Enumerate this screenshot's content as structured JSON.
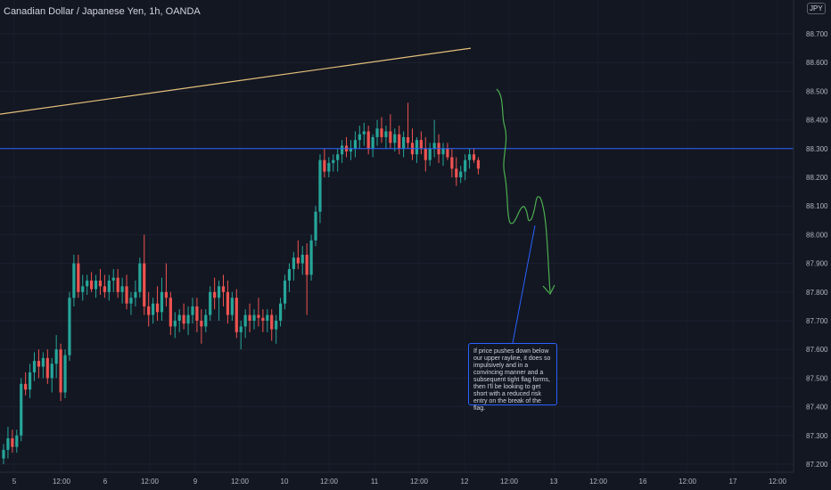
{
  "header": {
    "title": "Canadian Dollar / Japanese Yen, 1h, OANDA",
    "currency": "JPY"
  },
  "annotation": {
    "text": "If price pushes down below our upper rayline, it does so impulsively and in a convincing manner and a subsequent tight flag forms, then I'll be looking to get short with a reduced risk entry on the break of the flag."
  },
  "colors": {
    "background": "#131722",
    "bull": "#26a69a",
    "bear": "#ef5350",
    "horizontal_line": "#2962ff",
    "trend_line": "#e5c07b",
    "projection": "#4caf50",
    "annotation_border": "#2962ff"
  },
  "chart_data": {
    "type": "candlestick",
    "symbol": "CADJPY",
    "interval": "1h",
    "source": "OANDA",
    "ylim": [
      87.19,
      88.89
    ],
    "y_ticks": [
      "88.700",
      "88.600",
      "88.500",
      "88.400",
      "88.300",
      "88.200",
      "88.100",
      "88.000",
      "87.900",
      "87.800",
      "87.700",
      "87.600",
      "87.500",
      "87.400",
      "87.300",
      "87.200"
    ],
    "x_ticks": [
      "5",
      "12:00",
      "6",
      "12:00",
      "9",
      "12:00",
      "10",
      "12:00",
      "11",
      "12:00",
      "12",
      "12:00",
      "13",
      "12:00",
      "16",
      "12:00",
      "17",
      "12:00"
    ],
    "current_price_label": "88.3xx",
    "horizontal_line_level": 88.3,
    "trend_line": {
      "start_price": 88.42,
      "end_price": 88.65
    },
    "candles": [
      {
        "o": 87.22,
        "h": 87.27,
        "l": 87.2,
        "c": 87.25
      },
      {
        "o": 87.25,
        "h": 87.33,
        "l": 87.22,
        "c": 87.29
      },
      {
        "o": 87.29,
        "h": 87.32,
        "l": 87.24,
        "c": 87.26
      },
      {
        "o": 87.26,
        "h": 87.32,
        "l": 87.24,
        "c": 87.3
      },
      {
        "o": 87.3,
        "h": 87.5,
        "l": 87.28,
        "c": 87.48
      },
      {
        "o": 87.48,
        "h": 87.52,
        "l": 87.44,
        "c": 87.46
      },
      {
        "o": 87.46,
        "h": 87.55,
        "l": 87.43,
        "c": 87.52
      },
      {
        "o": 87.52,
        "h": 87.59,
        "l": 87.49,
        "c": 87.56
      },
      {
        "o": 87.56,
        "h": 87.6,
        "l": 87.5,
        "c": 87.54
      },
      {
        "o": 87.54,
        "h": 87.59,
        "l": 87.5,
        "c": 87.57
      },
      {
        "o": 87.57,
        "h": 87.6,
        "l": 87.48,
        "c": 87.5
      },
      {
        "o": 87.5,
        "h": 87.57,
        "l": 87.45,
        "c": 87.55
      },
      {
        "o": 87.55,
        "h": 87.65,
        "l": 87.5,
        "c": 87.6
      },
      {
        "o": 87.6,
        "h": 87.62,
        "l": 87.42,
        "c": 87.45
      },
      {
        "o": 87.45,
        "h": 87.6,
        "l": 87.43,
        "c": 87.58
      },
      {
        "o": 87.58,
        "h": 87.8,
        "l": 87.56,
        "c": 87.78
      },
      {
        "o": 87.78,
        "h": 87.93,
        "l": 87.75,
        "c": 87.9
      },
      {
        "o": 87.9,
        "h": 87.93,
        "l": 87.78,
        "c": 87.8
      },
      {
        "o": 87.8,
        "h": 87.86,
        "l": 87.77,
        "c": 87.82
      },
      {
        "o": 87.82,
        "h": 87.86,
        "l": 87.79,
        "c": 87.84
      },
      {
        "o": 87.84,
        "h": 87.87,
        "l": 87.8,
        "c": 87.81
      },
      {
        "o": 87.81,
        "h": 87.86,
        "l": 87.78,
        "c": 87.84
      },
      {
        "o": 87.84,
        "h": 87.88,
        "l": 87.79,
        "c": 87.82
      },
      {
        "o": 87.82,
        "h": 87.86,
        "l": 87.78,
        "c": 87.8
      },
      {
        "o": 87.8,
        "h": 87.86,
        "l": 87.77,
        "c": 87.84
      },
      {
        "o": 87.84,
        "h": 87.88,
        "l": 87.8,
        "c": 87.85
      },
      {
        "o": 87.85,
        "h": 87.88,
        "l": 87.78,
        "c": 87.8
      },
      {
        "o": 87.8,
        "h": 87.85,
        "l": 87.76,
        "c": 87.82
      },
      {
        "o": 87.82,
        "h": 87.86,
        "l": 87.74,
        "c": 87.76
      },
      {
        "o": 87.76,
        "h": 87.8,
        "l": 87.72,
        "c": 87.78
      },
      {
        "o": 87.78,
        "h": 87.84,
        "l": 87.75,
        "c": 87.8
      },
      {
        "o": 87.8,
        "h": 87.92,
        "l": 87.78,
        "c": 87.9
      },
      {
        "o": 87.9,
        "h": 88.0,
        "l": 87.72,
        "c": 87.75
      },
      {
        "o": 87.75,
        "h": 87.8,
        "l": 87.68,
        "c": 87.72
      },
      {
        "o": 87.72,
        "h": 87.78,
        "l": 87.69,
        "c": 87.76
      },
      {
        "o": 87.76,
        "h": 87.82,
        "l": 87.7,
        "c": 87.73
      },
      {
        "o": 87.73,
        "h": 87.85,
        "l": 87.7,
        "c": 87.8
      },
      {
        "o": 87.8,
        "h": 87.9,
        "l": 87.75,
        "c": 87.78
      },
      {
        "o": 87.78,
        "h": 87.8,
        "l": 87.65,
        "c": 87.68
      },
      {
        "o": 87.68,
        "h": 87.73,
        "l": 87.64,
        "c": 87.7
      },
      {
        "o": 87.7,
        "h": 87.74,
        "l": 87.66,
        "c": 87.72
      },
      {
        "o": 87.72,
        "h": 87.76,
        "l": 87.67,
        "c": 87.69
      },
      {
        "o": 87.69,
        "h": 87.75,
        "l": 87.65,
        "c": 87.72
      },
      {
        "o": 87.72,
        "h": 87.78,
        "l": 87.69,
        "c": 87.75
      },
      {
        "o": 87.75,
        "h": 87.78,
        "l": 87.66,
        "c": 87.7
      },
      {
        "o": 87.7,
        "h": 87.74,
        "l": 87.62,
        "c": 87.68
      },
      {
        "o": 87.68,
        "h": 87.74,
        "l": 87.66,
        "c": 87.72
      },
      {
        "o": 87.72,
        "h": 87.82,
        "l": 87.7,
        "c": 87.8
      },
      {
        "o": 87.8,
        "h": 87.85,
        "l": 87.74,
        "c": 87.78
      },
      {
        "o": 87.78,
        "h": 87.84,
        "l": 87.7,
        "c": 87.82
      },
      {
        "o": 87.82,
        "h": 87.86,
        "l": 87.75,
        "c": 87.8
      },
      {
        "o": 87.8,
        "h": 87.84,
        "l": 87.69,
        "c": 87.72
      },
      {
        "o": 87.72,
        "h": 87.8,
        "l": 87.7,
        "c": 87.78
      },
      {
        "o": 87.78,
        "h": 87.81,
        "l": 87.64,
        "c": 87.66
      },
      {
        "o": 87.66,
        "h": 87.7,
        "l": 87.6,
        "c": 87.68
      },
      {
        "o": 87.68,
        "h": 87.74,
        "l": 87.64,
        "c": 87.72
      },
      {
        "o": 87.72,
        "h": 87.76,
        "l": 87.66,
        "c": 87.7
      },
      {
        "o": 87.7,
        "h": 87.74,
        "l": 87.67,
        "c": 87.72
      },
      {
        "o": 87.72,
        "h": 87.78,
        "l": 87.68,
        "c": 87.71
      },
      {
        "o": 87.71,
        "h": 87.74,
        "l": 87.66,
        "c": 87.7
      },
      {
        "o": 87.7,
        "h": 87.74,
        "l": 87.66,
        "c": 87.72
      },
      {
        "o": 87.72,
        "h": 87.74,
        "l": 87.63,
        "c": 87.67
      },
      {
        "o": 87.67,
        "h": 87.72,
        "l": 87.62,
        "c": 87.7
      },
      {
        "o": 87.7,
        "h": 87.78,
        "l": 87.68,
        "c": 87.76
      },
      {
        "o": 87.76,
        "h": 87.86,
        "l": 87.74,
        "c": 87.84
      },
      {
        "o": 87.84,
        "h": 87.9,
        "l": 87.8,
        "c": 87.88
      },
      {
        "o": 87.88,
        "h": 87.94,
        "l": 87.84,
        "c": 87.92
      },
      {
        "o": 87.92,
        "h": 87.98,
        "l": 87.88,
        "c": 87.9
      },
      {
        "o": 87.9,
        "h": 87.96,
        "l": 87.86,
        "c": 87.93
      },
      {
        "o": 87.93,
        "h": 87.97,
        "l": 87.72,
        "c": 87.86
      },
      {
        "o": 87.86,
        "h": 88.0,
        "l": 87.84,
        "c": 87.98
      },
      {
        "o": 87.98,
        "h": 88.1,
        "l": 87.96,
        "c": 88.08
      },
      {
        "o": 88.08,
        "h": 88.28,
        "l": 88.04,
        "c": 88.26
      },
      {
        "o": 88.26,
        "h": 88.3,
        "l": 88.2,
        "c": 88.22
      },
      {
        "o": 88.22,
        "h": 88.27,
        "l": 88.2,
        "c": 88.25
      },
      {
        "o": 88.25,
        "h": 88.28,
        "l": 88.22,
        "c": 88.26
      },
      {
        "o": 88.26,
        "h": 88.3,
        "l": 88.22,
        "c": 88.28
      },
      {
        "o": 88.28,
        "h": 88.33,
        "l": 88.25,
        "c": 88.31
      },
      {
        "o": 88.31,
        "h": 88.34,
        "l": 88.27,
        "c": 88.29
      },
      {
        "o": 88.29,
        "h": 88.33,
        "l": 88.26,
        "c": 88.3
      },
      {
        "o": 88.3,
        "h": 88.36,
        "l": 88.27,
        "c": 88.33
      },
      {
        "o": 88.33,
        "h": 88.38,
        "l": 88.3,
        "c": 88.35
      },
      {
        "o": 88.35,
        "h": 88.39,
        "l": 88.31,
        "c": 88.36
      },
      {
        "o": 88.36,
        "h": 88.38,
        "l": 88.28,
        "c": 88.3
      },
      {
        "o": 88.3,
        "h": 88.35,
        "l": 88.27,
        "c": 88.34
      },
      {
        "o": 88.34,
        "h": 88.4,
        "l": 88.31,
        "c": 88.37
      },
      {
        "o": 88.37,
        "h": 88.41,
        "l": 88.32,
        "c": 88.34
      },
      {
        "o": 88.34,
        "h": 88.38,
        "l": 88.3,
        "c": 88.36
      },
      {
        "o": 88.36,
        "h": 88.42,
        "l": 88.3,
        "c": 88.32
      },
      {
        "o": 88.32,
        "h": 88.37,
        "l": 88.29,
        "c": 88.35
      },
      {
        "o": 88.35,
        "h": 88.38,
        "l": 88.28,
        "c": 88.3
      },
      {
        "o": 88.3,
        "h": 88.36,
        "l": 88.27,
        "c": 88.34
      },
      {
        "o": 88.34,
        "h": 88.46,
        "l": 88.3,
        "c": 88.32
      },
      {
        "o": 88.32,
        "h": 88.37,
        "l": 88.26,
        "c": 88.28
      },
      {
        "o": 88.28,
        "h": 88.34,
        "l": 88.25,
        "c": 88.33
      },
      {
        "o": 88.33,
        "h": 88.36,
        "l": 88.28,
        "c": 88.3
      },
      {
        "o": 88.3,
        "h": 88.34,
        "l": 88.22,
        "c": 88.26
      },
      {
        "o": 88.26,
        "h": 88.32,
        "l": 88.24,
        "c": 88.3
      },
      {
        "o": 88.3,
        "h": 88.4,
        "l": 88.27,
        "c": 88.32
      },
      {
        "o": 88.32,
        "h": 88.35,
        "l": 88.25,
        "c": 88.28
      },
      {
        "o": 88.28,
        "h": 88.32,
        "l": 88.24,
        "c": 88.3
      },
      {
        "o": 88.3,
        "h": 88.32,
        "l": 88.26,
        "c": 88.27
      },
      {
        "o": 88.27,
        "h": 88.3,
        "l": 88.2,
        "c": 88.23
      },
      {
        "o": 88.23,
        "h": 88.27,
        "l": 88.17,
        "c": 88.2
      },
      {
        "o": 88.2,
        "h": 88.24,
        "l": 88.18,
        "c": 88.22
      },
      {
        "o": 88.22,
        "h": 88.28,
        "l": 88.19,
        "c": 88.26
      },
      {
        "o": 88.26,
        "h": 88.3,
        "l": 88.23,
        "c": 88.28
      },
      {
        "o": 88.28,
        "h": 88.3,
        "l": 88.25,
        "c": 88.26
      },
      {
        "o": 88.26,
        "h": 88.27,
        "l": 88.21,
        "c": 88.23
      }
    ]
  }
}
